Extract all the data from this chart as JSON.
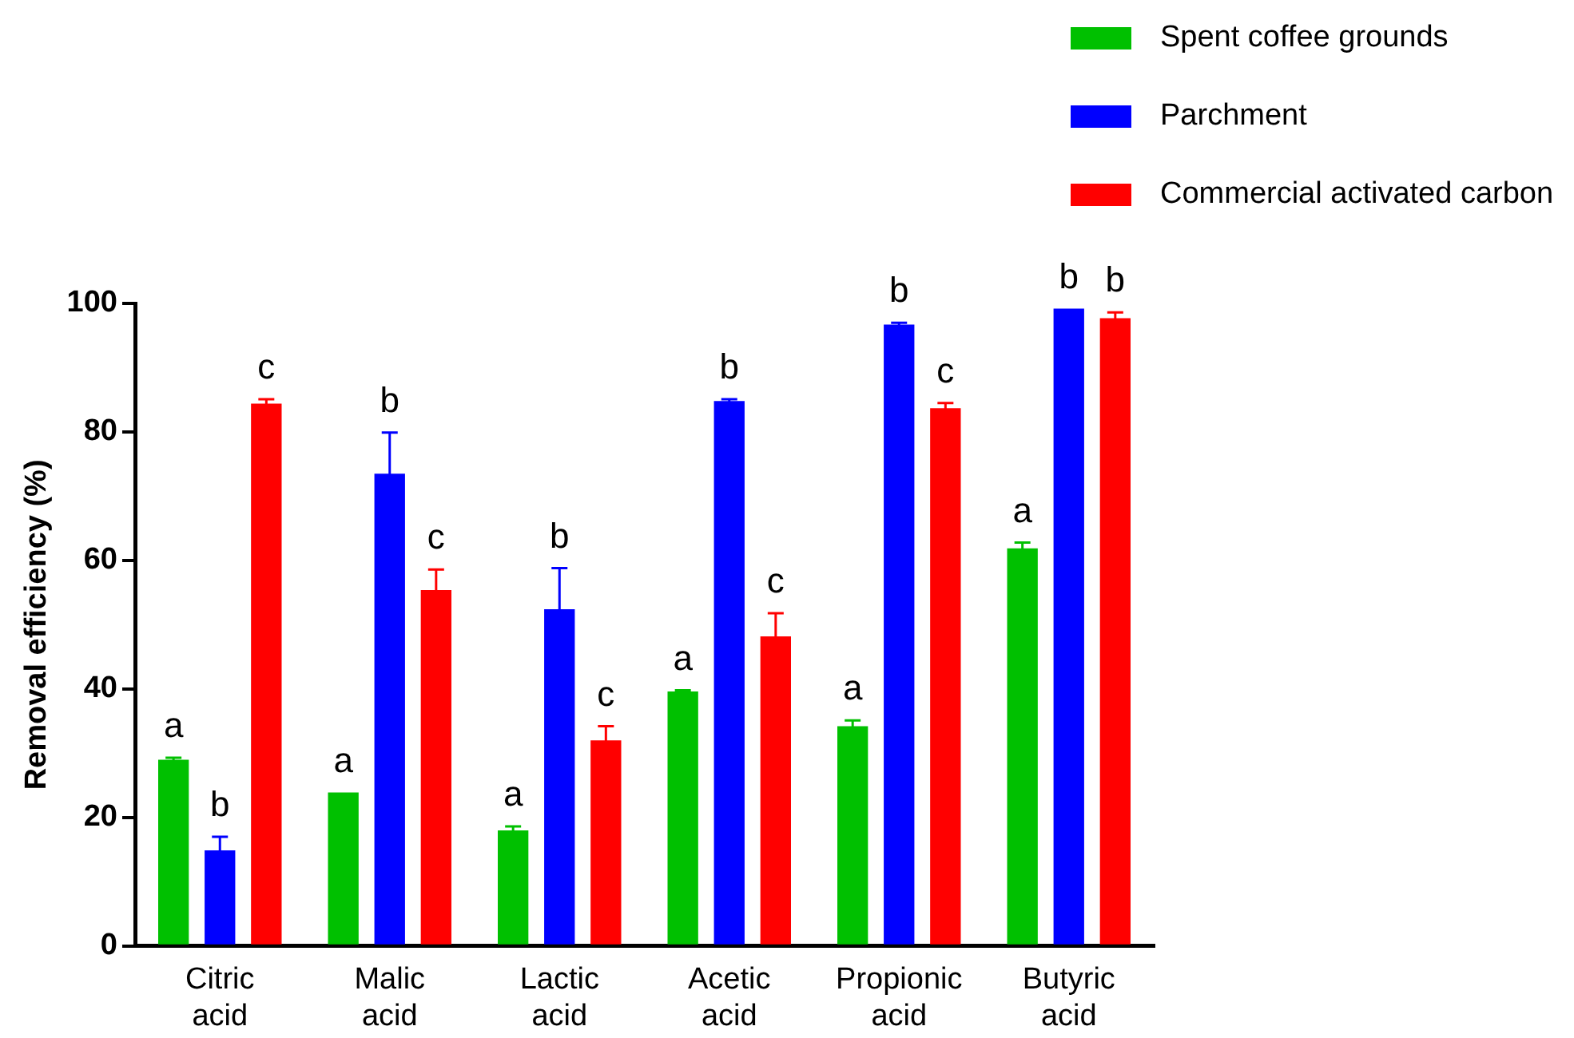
{
  "chart_data": {
    "type": "bar",
    "ylabel": "Removal efficiency (%)",
    "categories": [
      "Citric acid",
      "Malic acid",
      "Lactic acid",
      "Acetic acid",
      "Propionic acid",
      "Butyric acid"
    ],
    "series": [
      {
        "name": "Spent coffee grounds",
        "color": "#00c000",
        "values": [
          29.0,
          23.9,
          18.0,
          39.6,
          34.2,
          61.9
        ],
        "errors": [
          0.3,
          null,
          0.6,
          0.2,
          0.9,
          0.9
        ],
        "value_labels": [
          "a",
          "a",
          "a",
          "a",
          "a",
          "a"
        ]
      },
      {
        "name": "Parchment",
        "color": "#0000ff",
        "values": [
          14.9,
          73.5,
          52.4,
          84.8,
          96.7,
          99.2
        ],
        "errors": [
          2.1,
          6.4,
          6.4,
          0.3,
          0.3,
          null
        ],
        "value_labels": [
          "b",
          "b",
          "b",
          "b",
          "b",
          "b"
        ]
      },
      {
        "name": "Commercial activated carbon",
        "color": "#ff0000",
        "values": [
          84.4,
          55.4,
          32.0,
          48.2,
          83.7,
          97.7
        ],
        "errors": [
          0.7,
          3.2,
          2.2,
          3.6,
          0.8,
          0.9
        ],
        "value_labels": [
          "c",
          "c",
          "c",
          "c",
          "c",
          "b"
        ]
      }
    ],
    "ylim": [
      0,
      100
    ],
    "yticks": [
      0,
      20,
      40,
      60,
      80,
      100
    ],
    "grid": false,
    "legend": "top right"
  }
}
